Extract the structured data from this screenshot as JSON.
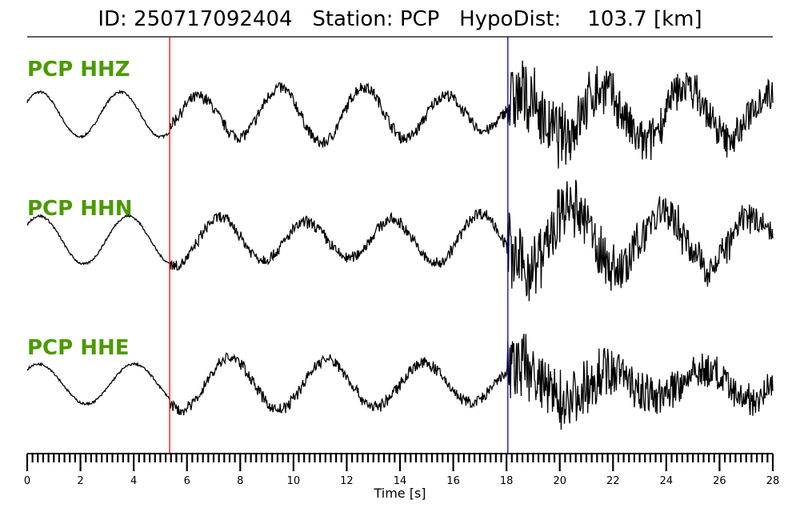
{
  "title": "ID: 250717092404   Station: PCP   HypoDist:    103.7 [km]",
  "chart_data": {
    "type": "line",
    "title": "ID: 250717092404   Station: PCP   HypoDist:    103.7 [km]",
    "xlabel": "Time [s]",
    "xlim": [
      0,
      28
    ],
    "x_ticks": [
      "0",
      "2",
      "4",
      "6",
      "8",
      "10",
      "12",
      "14",
      "16",
      "18",
      "20",
      "22",
      "24",
      "26",
      "28"
    ],
    "minor_tick_step": 0.2,
    "grid": false,
    "series": [
      {
        "name": "PCP HHZ",
        "color": "#000000"
      },
      {
        "name": "PCP HHN",
        "color": "#000000"
      },
      {
        "name": "PCP HHE",
        "color": "#000000"
      }
    ],
    "picks": [
      {
        "phase": "P",
        "time": 5.35,
        "color": "#ff0000"
      },
      {
        "phase": "S",
        "time": 18.05,
        "color": "#0000cc"
      }
    ],
    "label_color": "#4a9a00"
  }
}
